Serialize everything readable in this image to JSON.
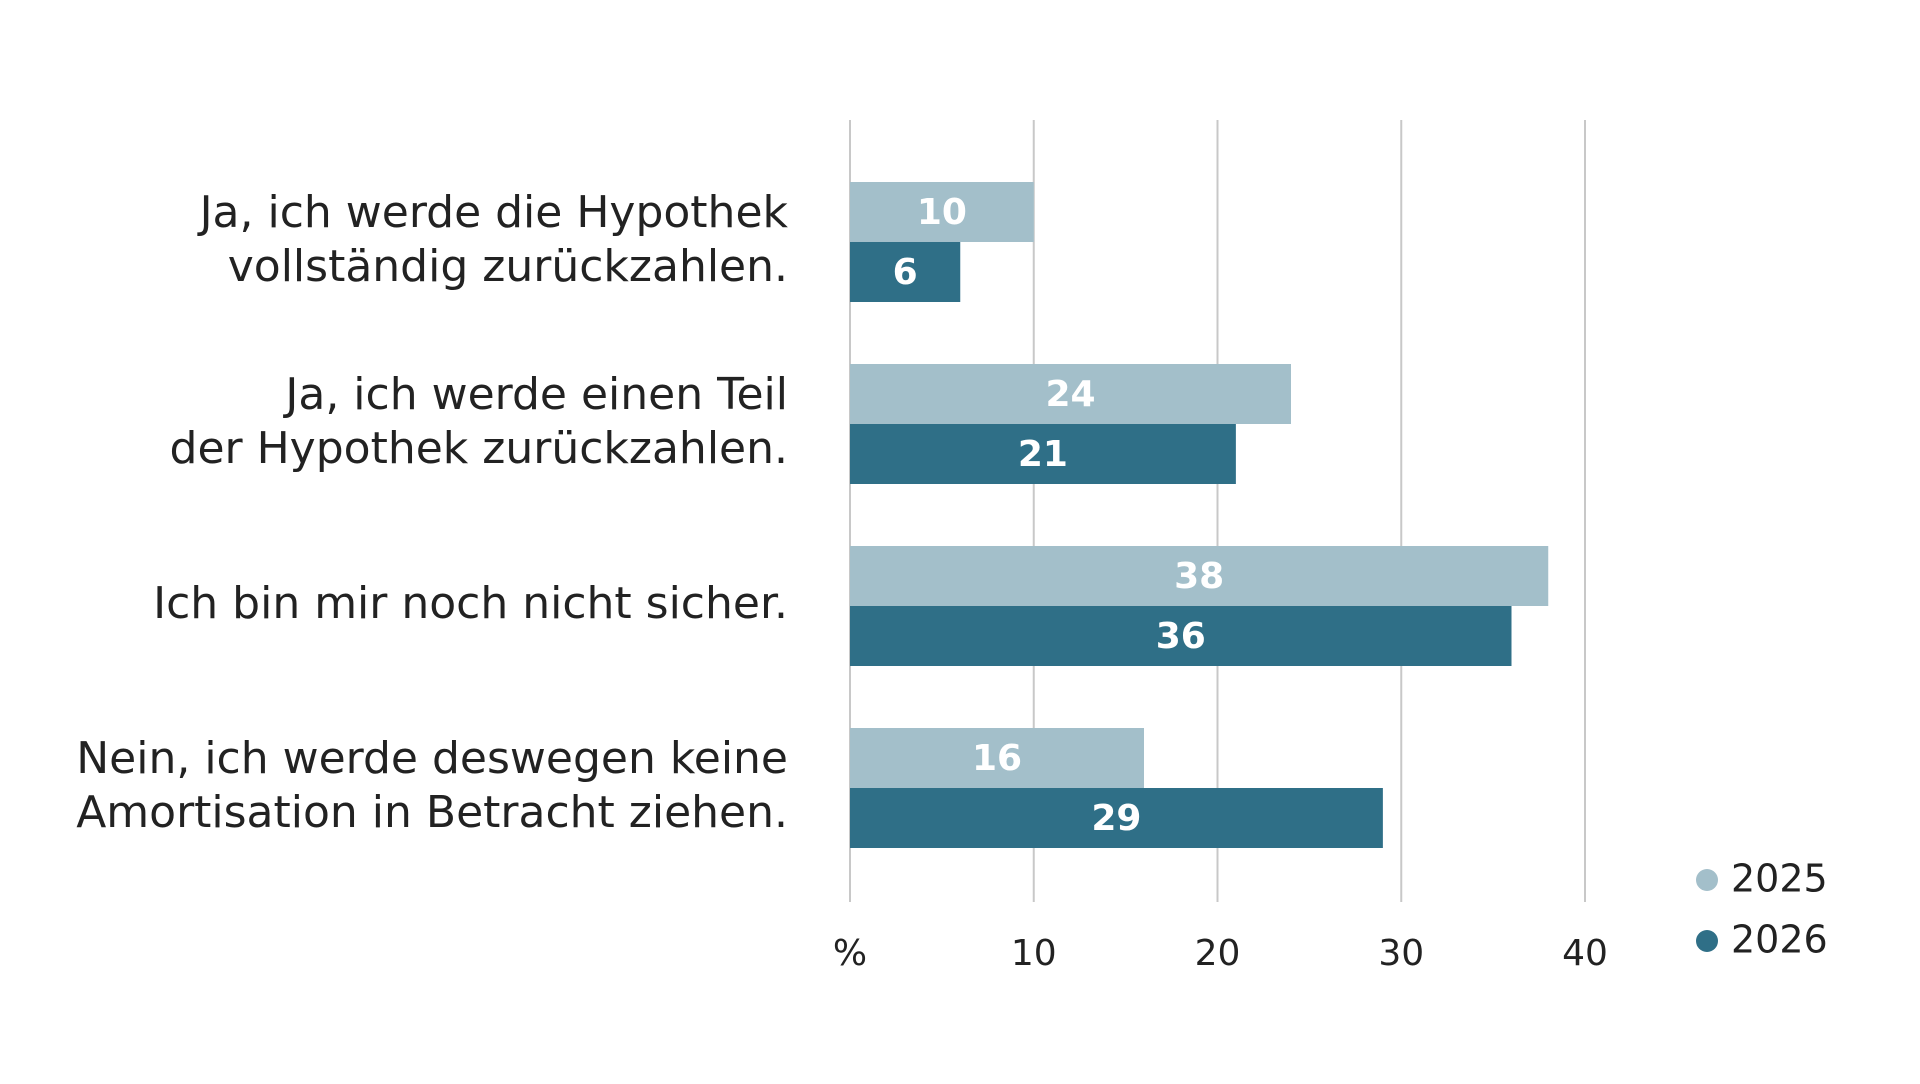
{
  "chart_data": {
    "type": "bar",
    "orientation": "horizontal",
    "categories": [
      [
        "Ja, ich werde die Hypothek",
        "vollständig zurückzahlen."
      ],
      [
        "Ja, ich werde einen Teil",
        "der Hypothek zurückzahlen."
      ],
      [
        "Ich bin mir noch nicht sicher."
      ],
      [
        "Nein, ich werde deswegen keine",
        "Amortisation in Betracht ziehen."
      ]
    ],
    "series": [
      {
        "name": "2025",
        "values": [
          10,
          24,
          38,
          16
        ],
        "color": "#a3bfca"
      },
      {
        "name": "2026",
        "values": [
          6,
          21,
          36,
          29
        ],
        "color": "#2f6f87"
      }
    ],
    "xlim": [
      0,
      40
    ],
    "x_ticks": [
      {
        "value": 0,
        "label": "%"
      },
      {
        "value": 10,
        "label": "10"
      },
      {
        "value": 20,
        "label": "20"
      },
      {
        "value": 30,
        "label": "30"
      },
      {
        "value": 40,
        "label": "40"
      }
    ],
    "grid": true,
    "gridline_color": "#c8c8c8",
    "data_labels": true,
    "legend": {
      "position": "bottom-right",
      "marker": "circle"
    }
  }
}
